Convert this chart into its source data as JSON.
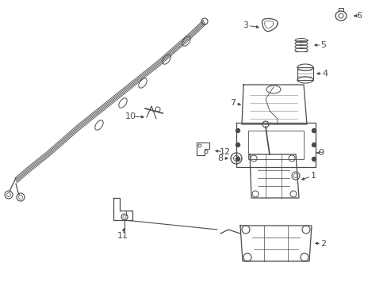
{
  "bg_color": "#ffffff",
  "line_color": "#4a4a4a",
  "figsize": [
    4.89,
    3.6
  ],
  "dpi": 100,
  "border_color": "#cccccc"
}
